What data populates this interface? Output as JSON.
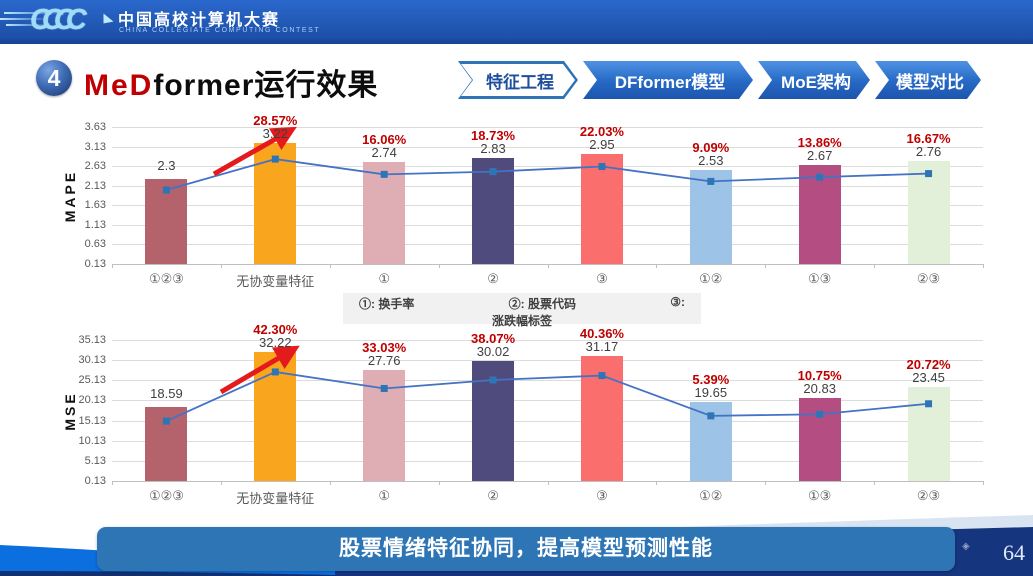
{
  "header": {
    "logo": "CCCC",
    "contest_title": "中国高校计算机大赛",
    "contest_subtitle": "CHINA COLLEGIATE COMPUTING CONTEST"
  },
  "title": {
    "number": "4",
    "red": "MeD",
    "black": "former",
    "suffix": "运行效果"
  },
  "nav": {
    "tabs": [
      {
        "label": "特征工程",
        "active": true
      },
      {
        "label": "DFformer模型",
        "active": false
      },
      {
        "label": "MoE架构",
        "active": false
      },
      {
        "label": "模型对比",
        "active": false
      }
    ]
  },
  "chart_data": [
    {
      "type": "bar",
      "title": "",
      "ylabel": "MAPE",
      "xlabel": "",
      "categories": [
        "①②③",
        "无协变量特征",
        "①",
        "②",
        "③",
        "①②",
        "①③",
        "②③"
      ],
      "series": [
        {
          "name": "MAPE bars",
          "values": [
            2.3,
            3.22,
            2.74,
            2.83,
            2.95,
            2.53,
            2.67,
            2.76
          ]
        },
        {
          "name": "MAPE line (secondary axis, estimated)",
          "values": [
            2.02,
            2.81,
            2.42,
            2.49,
            2.62,
            2.24,
            2.35,
            2.44
          ]
        }
      ],
      "bar_labels": [
        "2.3",
        "3.22",
        "2.74",
        "2.83",
        "2.95",
        "2.53",
        "2.67",
        "2.76"
      ],
      "pct_labels": [
        "",
        "28.57%",
        "16.06%",
        "18.73%",
        "22.03%",
        "9.09%",
        "13.86%",
        "16.67%"
      ],
      "bar_colors": [
        "#b4626b",
        "#faa51e",
        "#dfaeb4",
        "#504b7d",
        "#fb6e6e",
        "#9dc3e6",
        "#b44e82",
        "#e2f0d9"
      ],
      "line_color": "#4472c4",
      "marker_color": "#2e75b6",
      "yticks": [
        3.63,
        3.13,
        2.63,
        2.13,
        1.63,
        1.13,
        0.63,
        0.13
      ],
      "ylim": [
        0.13,
        3.63
      ],
      "grid": true,
      "legend_position": "none"
    },
    {
      "type": "bar",
      "title": "",
      "ylabel": "MSE",
      "xlabel": "",
      "categories": [
        "①②③",
        "无协变量特征",
        "①",
        "②",
        "③",
        "①②",
        "①③",
        "②③"
      ],
      "series": [
        {
          "name": "MSE bars",
          "values": [
            18.59,
            32.22,
            27.76,
            30.02,
            31.17,
            19.65,
            20.83,
            23.45
          ]
        },
        {
          "name": "MSE line (secondary axis, estimated)",
          "values": [
            15.0,
            27.2,
            23.1,
            25.2,
            26.3,
            16.3,
            16.7,
            19.3
          ]
        }
      ],
      "bar_labels": [
        "18.59",
        "32.22",
        "27.76",
        "30.02",
        "31.17",
        "19.65",
        "20.83",
        "23.45"
      ],
      "pct_labels": [
        "",
        "42.30%",
        "33.03%",
        "38.07%",
        "40.36%",
        "5.39%",
        "10.75%",
        "20.72%"
      ],
      "bar_colors": [
        "#b4626b",
        "#faa51e",
        "#dfaeb4",
        "#504b7d",
        "#fb6e6e",
        "#9dc3e6",
        "#b44e82",
        "#e2f0d9"
      ],
      "line_color": "#4472c4",
      "marker_color": "#2e75b6",
      "yticks": [
        35.13,
        30.13,
        25.13,
        20.13,
        15.13,
        10.13,
        5.13,
        0.13
      ],
      "ylim": [
        0.13,
        35.13
      ],
      "grid": true,
      "legend_position": "none"
    }
  ],
  "annotation": {
    "arrow_color": "#e31b1c"
  },
  "legend": {
    "item1": "①: 换手率",
    "item2": "②: 股票代码",
    "item3": "③:",
    "item3_line2": "涨跌幅标签"
  },
  "banner": {
    "text": "股票情绪特征协同，提高模型预测性能"
  },
  "page_number": "64"
}
